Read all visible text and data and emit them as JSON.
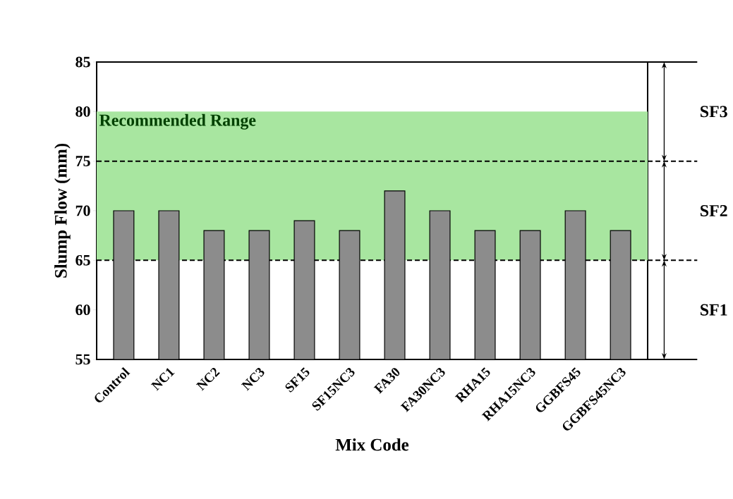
{
  "chart_data": {
    "type": "bar",
    "xlabel": "Mix Code",
    "ylabel": "Slump Flow (mm)",
    "categories": [
      "Control",
      "NC1",
      "NC2",
      "NC3",
      "SF15",
      "SF15NC3",
      "FA30",
      "FA30NC3",
      "RHA15",
      "RHA15NC3",
      "GGBFS45",
      "GGBFS45NC3"
    ],
    "values": [
      70,
      70,
      68,
      68,
      69,
      68,
      72,
      70,
      68,
      68,
      70,
      68
    ],
    "color": "#8c8c8c",
    "ylim": [
      55,
      85
    ],
    "yticks": [
      55,
      60,
      65,
      70,
      75,
      80,
      85
    ],
    "bands": [
      {
        "axis": "y",
        "from": 65,
        "to": 80,
        "label": "Recommended Range",
        "color": "#a8e6a0"
      }
    ],
    "ref_lines": [
      {
        "axis": "y",
        "value": 75,
        "line_style": "dashed",
        "color": "#000000"
      },
      {
        "axis": "y",
        "value": 65,
        "line_style": "dashed",
        "color": "#000000"
      }
    ],
    "annotations": [
      "SF3",
      "SF2",
      "SF1"
    ]
  }
}
